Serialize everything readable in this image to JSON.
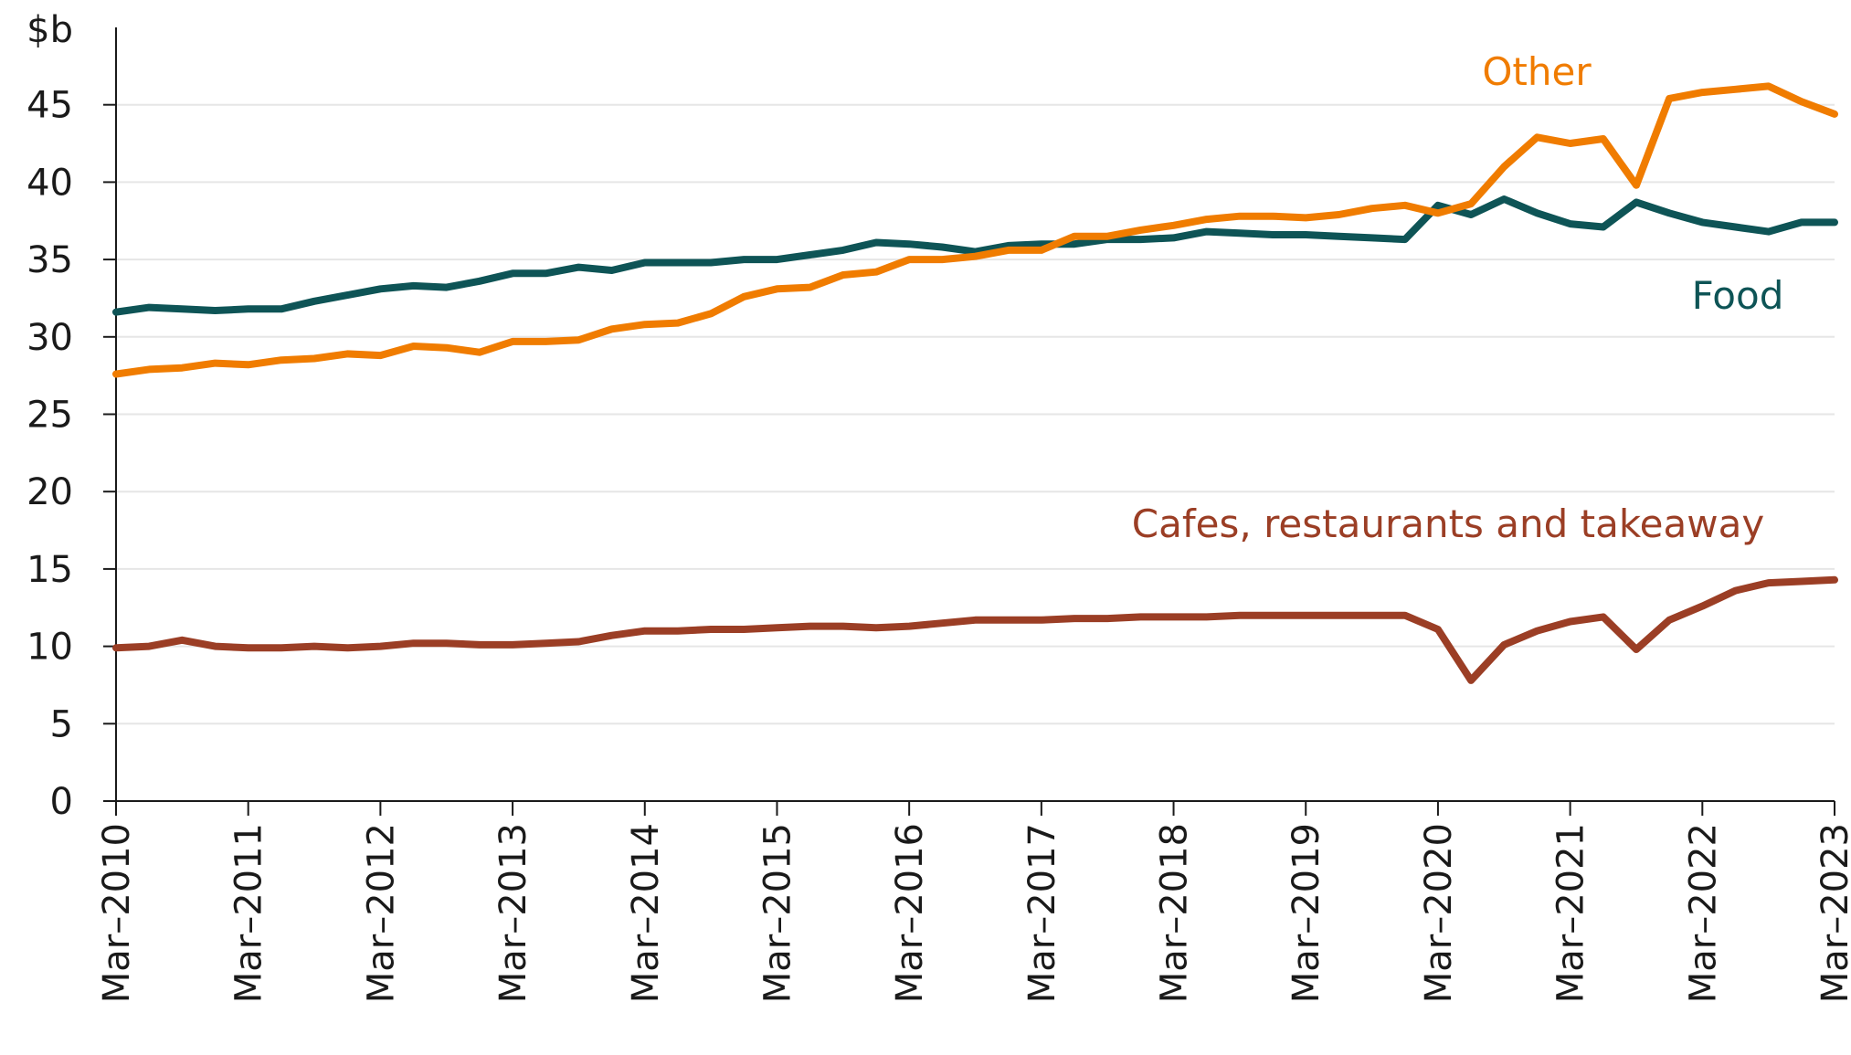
{
  "chart_data": {
    "type": "line",
    "ylabel": "$b",
    "ylim": [
      0,
      50
    ],
    "yticks": [
      "0",
      "5",
      "10",
      "15",
      "20",
      "25",
      "30",
      "35",
      "40",
      "45"
    ],
    "grid": "horizontal",
    "x_ticks": [
      "Mar–2010",
      "Mar–2011",
      "Mar–2012",
      "Mar–2013",
      "Mar–2014",
      "Mar–2015",
      "Mar–2016",
      "Mar–2017",
      "Mar–2018",
      "Mar–2019",
      "Mar–2020",
      "Mar–2021",
      "Mar–2022",
      "Mar–2023"
    ],
    "x": [
      "Mar-2010",
      "Jun-2010",
      "Sep-2010",
      "Dec-2010",
      "Mar-2011",
      "Jun-2011",
      "Sep-2011",
      "Dec-2011",
      "Mar-2012",
      "Jun-2012",
      "Sep-2012",
      "Dec-2012",
      "Mar-2013",
      "Jun-2013",
      "Sep-2013",
      "Dec-2013",
      "Mar-2014",
      "Jun-2014",
      "Sep-2014",
      "Dec-2014",
      "Mar-2015",
      "Jun-2015",
      "Sep-2015",
      "Dec-2015",
      "Mar-2016",
      "Jun-2016",
      "Sep-2016",
      "Dec-2016",
      "Mar-2017",
      "Jun-2017",
      "Sep-2017",
      "Dec-2017",
      "Mar-2018",
      "Jun-2018",
      "Sep-2018",
      "Dec-2018",
      "Mar-2019",
      "Jun-2019",
      "Sep-2019",
      "Dec-2019",
      "Mar-2020",
      "Jun-2020",
      "Sep-2020",
      "Dec-2020",
      "Mar-2021",
      "Jun-2021",
      "Sep-2021",
      "Dec-2021",
      "Mar-2022",
      "Jun-2022",
      "Sep-2022",
      "Dec-2022",
      "Mar-2023"
    ],
    "series": [
      {
        "name": "Other",
        "color": "#f07c00",
        "values": [
          27.6,
          27.9,
          28.0,
          28.3,
          28.2,
          28.5,
          28.6,
          28.9,
          28.8,
          29.4,
          29.3,
          29.0,
          29.7,
          29.7,
          29.8,
          30.5,
          30.8,
          30.9,
          31.5,
          32.6,
          33.1,
          33.2,
          34.0,
          34.2,
          35.0,
          35.0,
          35.2,
          35.6,
          35.6,
          36.5,
          36.5,
          36.9,
          37.2,
          37.6,
          37.8,
          37.8,
          37.7,
          37.9,
          38.3,
          38.5,
          38.0,
          38.6,
          41.0,
          42.9,
          42.5,
          42.8,
          39.8,
          45.4,
          45.8,
          46.0,
          46.2,
          45.2,
          44.4
        ]
      },
      {
        "name": "Food",
        "color": "#0e5456",
        "values": [
          31.6,
          31.9,
          31.8,
          31.7,
          31.8,
          31.8,
          32.3,
          32.7,
          33.1,
          33.3,
          33.2,
          33.6,
          34.1,
          34.1,
          34.5,
          34.3,
          34.8,
          34.8,
          34.8,
          35.0,
          35.0,
          35.3,
          35.6,
          36.1,
          36.0,
          35.8,
          35.5,
          35.9,
          36.0,
          36.0,
          36.3,
          36.3,
          36.4,
          36.8,
          36.7,
          36.6,
          36.6,
          36.5,
          36.4,
          36.3,
          38.5,
          37.9,
          38.9,
          38.0,
          37.3,
          37.1,
          38.7,
          38.0,
          37.4,
          37.1,
          36.8,
          37.4,
          37.4
        ]
      },
      {
        "name": "Cafes, restaurants and takeaway",
        "color": "#9b3e25",
        "values": [
          9.9,
          10.0,
          10.4,
          10.0,
          9.9,
          9.9,
          10.0,
          9.9,
          10.0,
          10.2,
          10.2,
          10.1,
          10.1,
          10.2,
          10.3,
          10.7,
          11.0,
          11.0,
          11.1,
          11.1,
          11.2,
          11.3,
          11.3,
          11.2,
          11.3,
          11.5,
          11.7,
          11.7,
          11.7,
          11.8,
          11.8,
          11.9,
          11.9,
          11.9,
          12.0,
          12.0,
          12.0,
          12.0,
          12.0,
          12.0,
          11.1,
          7.8,
          10.1,
          11.0,
          11.6,
          11.9,
          9.8,
          11.7,
          12.6,
          13.6,
          14.1,
          14.2,
          14.3
        ]
      }
    ]
  }
}
